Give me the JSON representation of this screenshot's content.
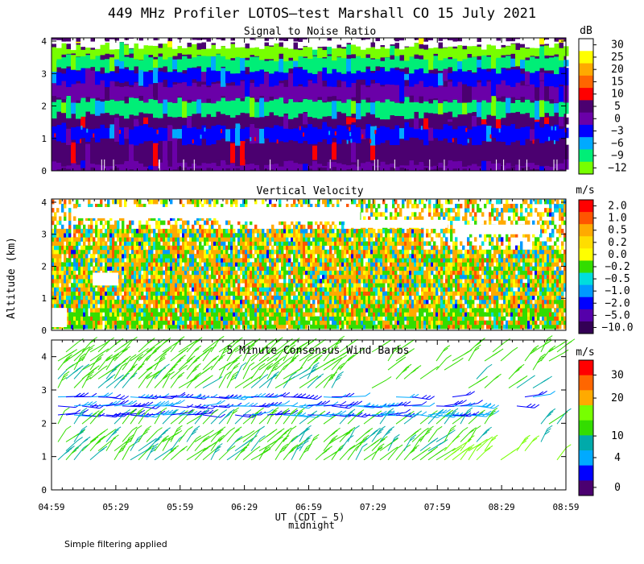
{
  "title": "449 MHz Profiler LOTOS—test Marshall CO 15 July 2021",
  "footnote": "Simple filtering applied",
  "ylabel": "Altitude (km)",
  "xlabel": "UT (CDT − 5)",
  "midnight_label": "midnight",
  "chart_data": [
    {
      "type": "heatmap",
      "title": "Signal to Noise Ratio",
      "unit": "dB",
      "x_ticks": [
        "04:59",
        "05:29",
        "05:59",
        "06:29",
        "06:59",
        "07:29",
        "07:59",
        "08:29",
        "08:59"
      ],
      "y_ticks": [
        "0",
        "1",
        "2",
        "3",
        "4"
      ],
      "ylim": [
        0,
        4.1
      ],
      "colorbar": {
        "labels": [
          "30",
          "25",
          "20",
          "15",
          "10",
          "5",
          "0",
          "−3",
          "−6",
          "−9",
          "−12"
        ],
        "colors": [
          "#ffffff",
          "#ffff00",
          "#ffaa00",
          "#ff6600",
          "#ff0000",
          "#4b0070",
          "#6a00a8",
          "#0000ff",
          "#00aaff",
          "#00ee77",
          "#77ff00"
        ]
      },
      "bands": [
        {
          "from": 0.0,
          "to": 0.25,
          "color": "#6a00a8"
        },
        {
          "from": 0.25,
          "to": 0.9,
          "color": "#4b0070"
        },
        {
          "from": 0.9,
          "to": 1.4,
          "color": "#0000ff"
        },
        {
          "from": 1.4,
          "to": 1.7,
          "color": "#4b0070"
        },
        {
          "from": 1.7,
          "to": 2.2,
          "color": "#00ee77"
        },
        {
          "from": 2.2,
          "to": 2.7,
          "color": "#6a00a8"
        },
        {
          "from": 2.7,
          "to": 3.1,
          "color": "#0000ff"
        },
        {
          "from": 3.1,
          "to": 3.5,
          "color": "#00ee77"
        },
        {
          "from": 3.5,
          "to": 3.85,
          "color": "#77ff00"
        },
        {
          "from": 3.85,
          "to": 4.1,
          "color": "#ffffff"
        }
      ]
    },
    {
      "type": "heatmap",
      "title": "Vertical Velocity",
      "unit": "m/s",
      "x_ticks": [
        "04:59",
        "05:29",
        "05:59",
        "06:29",
        "06:59",
        "07:29",
        "07:59",
        "08:29",
        "08:59"
      ],
      "y_ticks": [
        "0",
        "1",
        "2",
        "3",
        "4"
      ],
      "ylim": [
        0,
        4.1
      ],
      "colorbar": {
        "labels": [
          "2.0",
          "1.0",
          "0.5",
          "0.2",
          "0.0",
          "−0.2",
          "−0.5",
          "−1.0",
          "−2.0",
          "−5.0",
          "−10.0"
        ],
        "colors": [
          "#ff0000",
          "#ff5500",
          "#ffaa00",
          "#ffdd00",
          "#ffff00",
          "#33dd00",
          "#00dddd",
          "#0099ff",
          "#0000ff",
          "#5500aa",
          "#330055"
        ]
      }
    },
    {
      "type": "scatter",
      "title": "5 Minute Consensus Wind Barbs",
      "unit": "m/s",
      "x_ticks": [
        "04:59",
        "05:29",
        "05:59",
        "06:29",
        "06:59",
        "07:29",
        "07:59",
        "08:29",
        "08:59"
      ],
      "y_ticks": [
        "0",
        "1",
        "2",
        "3",
        "4"
      ],
      "ylim": [
        0,
        4.5
      ],
      "colorbar": {
        "labels": [
          "30",
          "20",
          "10",
          "4",
          "0"
        ],
        "colors": [
          "#ff0000",
          "#ff6600",
          "#ffaa00",
          "#77ff00",
          "#33dd00",
          "#00aaaa",
          "#00aaff",
          "#0000ff",
          "#4b0070"
        ]
      }
    }
  ]
}
